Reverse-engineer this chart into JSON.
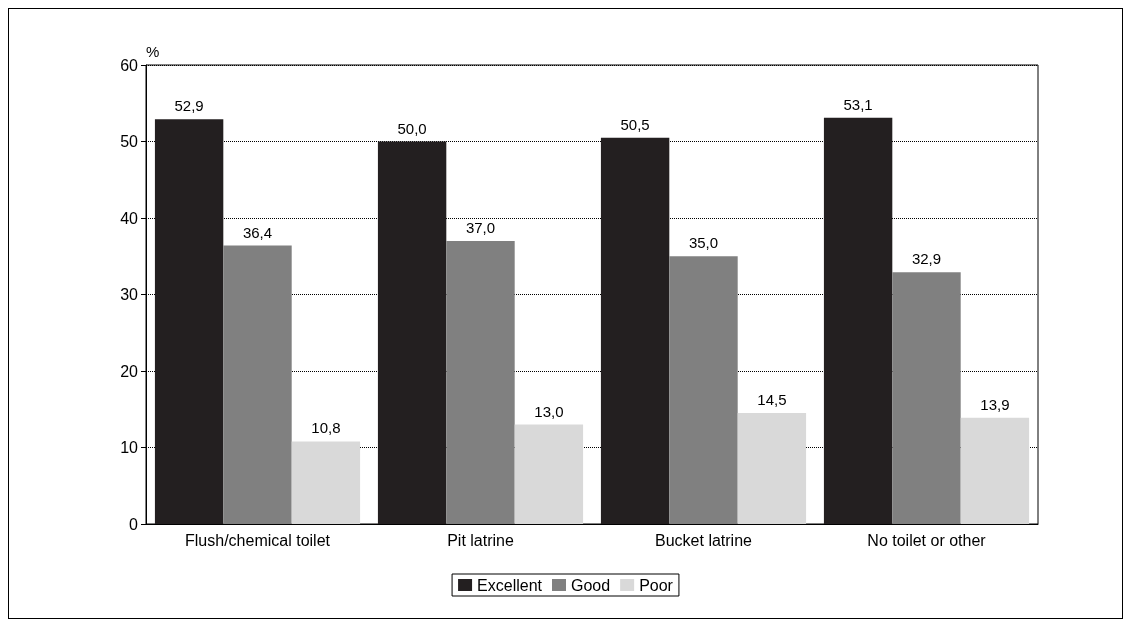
{
  "chart_data": {
    "type": "bar",
    "ylabel": "%",
    "categories": [
      "Flush/chemical toilet",
      "Pit latrine",
      "Bucket latrine",
      "No toilet or other"
    ],
    "series": [
      {
        "name": "Excellent",
        "color": "#231f20",
        "values": [
          52.9,
          50.0,
          50.5,
          53.1
        ],
        "value_labels": [
          "52,9",
          "50,0",
          "50,5",
          "53,1"
        ]
      },
      {
        "name": "Good",
        "color": "#808080",
        "values": [
          36.4,
          37.0,
          35.0,
          32.9
        ],
        "value_labels": [
          "36,4",
          "37,0",
          "35,0",
          "32,9"
        ]
      },
      {
        "name": "Poor",
        "color": "#d9d9d9",
        "values": [
          10.8,
          13.0,
          14.5,
          13.9
        ],
        "value_labels": [
          "10,8",
          "13,0",
          "14,5",
          "13,9"
        ]
      }
    ],
    "ylim": [
      0,
      60
    ],
    "yticks": [
      0,
      10,
      20,
      30,
      40,
      50,
      60
    ],
    "grid": "y",
    "legend": "bottom"
  }
}
